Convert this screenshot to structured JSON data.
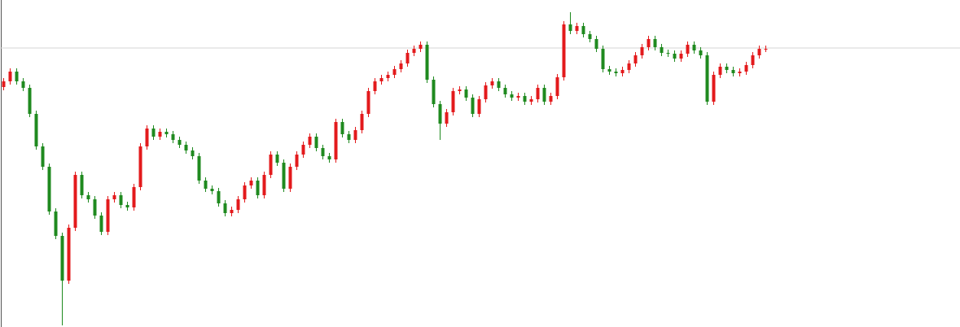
{
  "chart_data": {
    "type": "candlestick",
    "up_color": "#e31a1c",
    "down_color": "#1f8a1f",
    "ref_line": 343,
    "ref_color": "#d4d4d4",
    "ylim": [
      0,
      402
    ],
    "open": [
      295,
      302,
      314,
      302,
      294,
      262,
      222,
      197,
      142,
      112,
      57,
      122,
      187,
      162,
      157,
      137,
      117,
      157,
      162,
      150,
      147,
      172,
      222,
      244,
      234,
      240,
      237,
      230,
      224,
      217,
      210,
      180,
      170,
      167,
      152,
      140,
      144,
      157,
      174,
      180,
      162,
      187,
      212,
      202,
      170,
      197,
      212,
      224,
      234,
      220,
      210,
      206,
      252,
      237,
      230,
      242,
      262,
      290,
      302,
      306,
      310,
      317,
      324,
      337,
      342,
      347,
      304,
      274,
      250,
      264,
      290,
      292,
      282,
      262,
      280,
      297,
      302,
      294,
      286,
      282,
      284,
      277,
      280,
      294,
      277,
      284,
      307,
      372,
      364,
      370,
      360,
      354,
      342,
      317,
      314,
      312,
      316,
      324,
      334,
      344,
      354,
      344,
      337,
      336,
      330,
      336,
      347,
      340,
      334,
      277,
      310,
      320,
      316,
      312,
      314,
      322,
      334,
      342
    ],
    "high": [
      306,
      318,
      318,
      306,
      298,
      266,
      226,
      201,
      146,
      116,
      126,
      191,
      191,
      166,
      161,
      141,
      161,
      166,
      166,
      154,
      176,
      226,
      248,
      248,
      244,
      244,
      241,
      234,
      228,
      221,
      214,
      184,
      174,
      171,
      156,
      148,
      161,
      178,
      184,
      184,
      191,
      216,
      216,
      206,
      201,
      216,
      228,
      238,
      238,
      224,
      214,
      256,
      256,
      241,
      246,
      266,
      294,
      306,
      310,
      314,
      321,
      328,
      341,
      346,
      351,
      351,
      308,
      278,
      268,
      294,
      296,
      296,
      286,
      284,
      301,
      306,
      306,
      298,
      290,
      288,
      288,
      284,
      298,
      298,
      288,
      311,
      376,
      387,
      374,
      374,
      364,
      358,
      346,
      321,
      318,
      320,
      328,
      338,
      348,
      358,
      358,
      348,
      341,
      340,
      340,
      351,
      351,
      344,
      338,
      314,
      324,
      324,
      320,
      318,
      326,
      338,
      346,
      346
    ],
    "low": [
      291,
      298,
      298,
      290,
      258,
      218,
      193,
      138,
      108,
      2,
      53,
      118,
      158,
      153,
      133,
      113,
      113,
      153,
      146,
      143,
      143,
      168,
      218,
      230,
      230,
      233,
      226,
      220,
      213,
      206,
      176,
      166,
      163,
      148,
      136,
      136,
      140,
      153,
      170,
      158,
      158,
      183,
      198,
      166,
      166,
      193,
      208,
      220,
      216,
      206,
      202,
      202,
      233,
      226,
      226,
      238,
      258,
      286,
      298,
      302,
      306,
      313,
      320,
      333,
      338,
      300,
      270,
      230,
      246,
      260,
      286,
      278,
      258,
      258,
      276,
      293,
      290,
      282,
      278,
      278,
      273,
      273,
      276,
      273,
      273,
      280,
      303,
      360,
      360,
      356,
      350,
      338,
      313,
      310,
      308,
      308,
      312,
      320,
      330,
      340,
      340,
      333,
      332,
      326,
      326,
      332,
      336,
      330,
      273,
      273,
      306,
      312,
      308,
      308,
      310,
      318,
      330,
      338
    ],
    "close": [
      302,
      314,
      302,
      294,
      262,
      222,
      197,
      142,
      112,
      57,
      122,
      187,
      162,
      157,
      137,
      117,
      157,
      162,
      150,
      147,
      172,
      222,
      244,
      234,
      240,
      237,
      230,
      224,
      217,
      210,
      180,
      170,
      167,
      152,
      140,
      144,
      157,
      174,
      180,
      162,
      187,
      212,
      202,
      170,
      197,
      212,
      224,
      234,
      220,
      210,
      206,
      252,
      237,
      230,
      242,
      262,
      290,
      302,
      306,
      310,
      317,
      324,
      337,
      342,
      347,
      304,
      274,
      250,
      264,
      290,
      292,
      282,
      262,
      280,
      297,
      302,
      294,
      286,
      282,
      284,
      277,
      280,
      294,
      277,
      284,
      307,
      372,
      364,
      370,
      360,
      354,
      342,
      317,
      314,
      312,
      316,
      324,
      334,
      344,
      354,
      344,
      337,
      336,
      330,
      336,
      347,
      340,
      334,
      277,
      310,
      320,
      316,
      312,
      314,
      322,
      334,
      342,
      342
    ]
  }
}
